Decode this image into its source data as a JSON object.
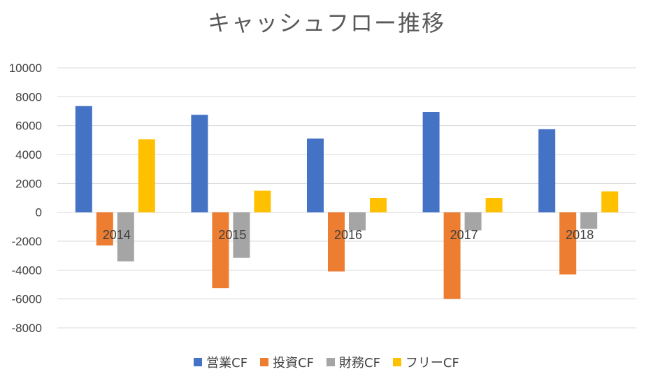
{
  "chart_data": {
    "type": "bar",
    "title": "キャッシュフロー推移",
    "xlabel": "",
    "ylabel": "",
    "categories": [
      "2014",
      "2015",
      "2016",
      "2017",
      "2018"
    ],
    "series": [
      {
        "name": "営業CF",
        "color": "#4472C4",
        "values": [
          7350,
          6750,
          5100,
          6950,
          5750
        ]
      },
      {
        "name": "投資CF",
        "color": "#ED7D31",
        "values": [
          -2300,
          -5250,
          -4100,
          -6000,
          -4300
        ]
      },
      {
        "name": "財務CF",
        "color": "#A5A5A5",
        "values": [
          -3400,
          -3150,
          -1250,
          -1250,
          -1150
        ]
      },
      {
        "name": "フリーCF",
        "color": "#FFC000",
        "values": [
          5050,
          1500,
          1000,
          1000,
          1450
        ]
      }
    ],
    "ylim": [
      -8000,
      10000
    ],
    "yticks": [
      "10000",
      "8000",
      "6000",
      "4000",
      "2000",
      "0",
      "-2000",
      "-4000",
      "-6000",
      "-8000"
    ],
    "grid": true,
    "legend_position": "bottom"
  }
}
